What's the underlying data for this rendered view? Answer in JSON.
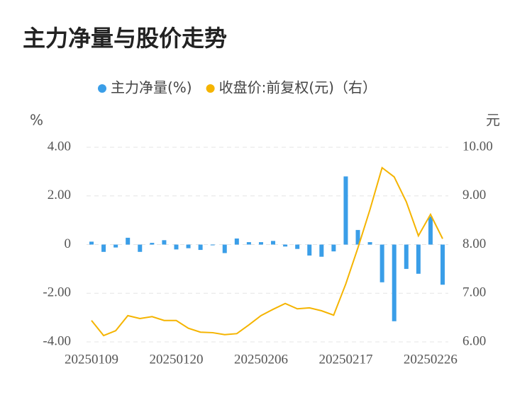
{
  "chart_data": {
    "type": "bar_line",
    "title": "主力净量与股价走势",
    "y_label": "%",
    "y2_label": "元",
    "categories": [
      "20250109",
      null,
      null,
      null,
      null,
      null,
      null,
      "20250120",
      null,
      null,
      null,
      null,
      null,
      null,
      "20250206",
      null,
      null,
      null,
      null,
      null,
      null,
      "20250217",
      null,
      null,
      null,
      null,
      null,
      null,
      "20250226",
      null
    ],
    "series": [
      {
        "name": "主力净量(%)",
        "color": "#3a9ee8",
        "type": "bar",
        "values": [
          0.12,
          -0.3,
          -0.12,
          0.28,
          -0.3,
          0.07,
          0.18,
          -0.2,
          -0.15,
          -0.22,
          -0.03,
          -0.35,
          0.25,
          0.1,
          0.1,
          0.15,
          -0.08,
          -0.18,
          -0.45,
          -0.5,
          -0.28,
          2.8,
          0.6,
          0.1,
          -1.55,
          -3.15,
          -1.0,
          -1.2,
          1.15,
          -1.65
        ]
      },
      {
        "name": "收盘价:前复权(元)（右）",
        "color": "#f5b400",
        "type": "line",
        "axis": "y2",
        "values": [
          6.44,
          6.13,
          6.23,
          6.54,
          6.48,
          6.52,
          6.44,
          6.44,
          6.28,
          6.2,
          6.19,
          6.15,
          6.17,
          6.35,
          6.54,
          6.67,
          6.79,
          6.68,
          6.7,
          6.64,
          6.55,
          7.19,
          7.93,
          8.72,
          9.58,
          9.39,
          8.88,
          8.18,
          8.62,
          8.12
        ]
      }
    ],
    "ylim": [
      -4,
      4
    ],
    "yticks": [
      {
        "value": -4,
        "label": "-4.00"
      },
      {
        "value": -2,
        "label": "-2.00"
      },
      0,
      {
        "value": 2,
        "label": "2.00"
      },
      {
        "value": 4,
        "label": "4.00"
      }
    ],
    "y2lim": [
      6,
      10
    ],
    "y2ticks": [
      {
        "value": 6,
        "label": "6.00"
      },
      {
        "value": 7,
        "label": "7.00"
      },
      {
        "value": 8,
        "label": "8.00"
      },
      {
        "value": 9,
        "label": "9.00"
      },
      {
        "value": 10,
        "label": "10.00"
      }
    ],
    "grid": true
  }
}
